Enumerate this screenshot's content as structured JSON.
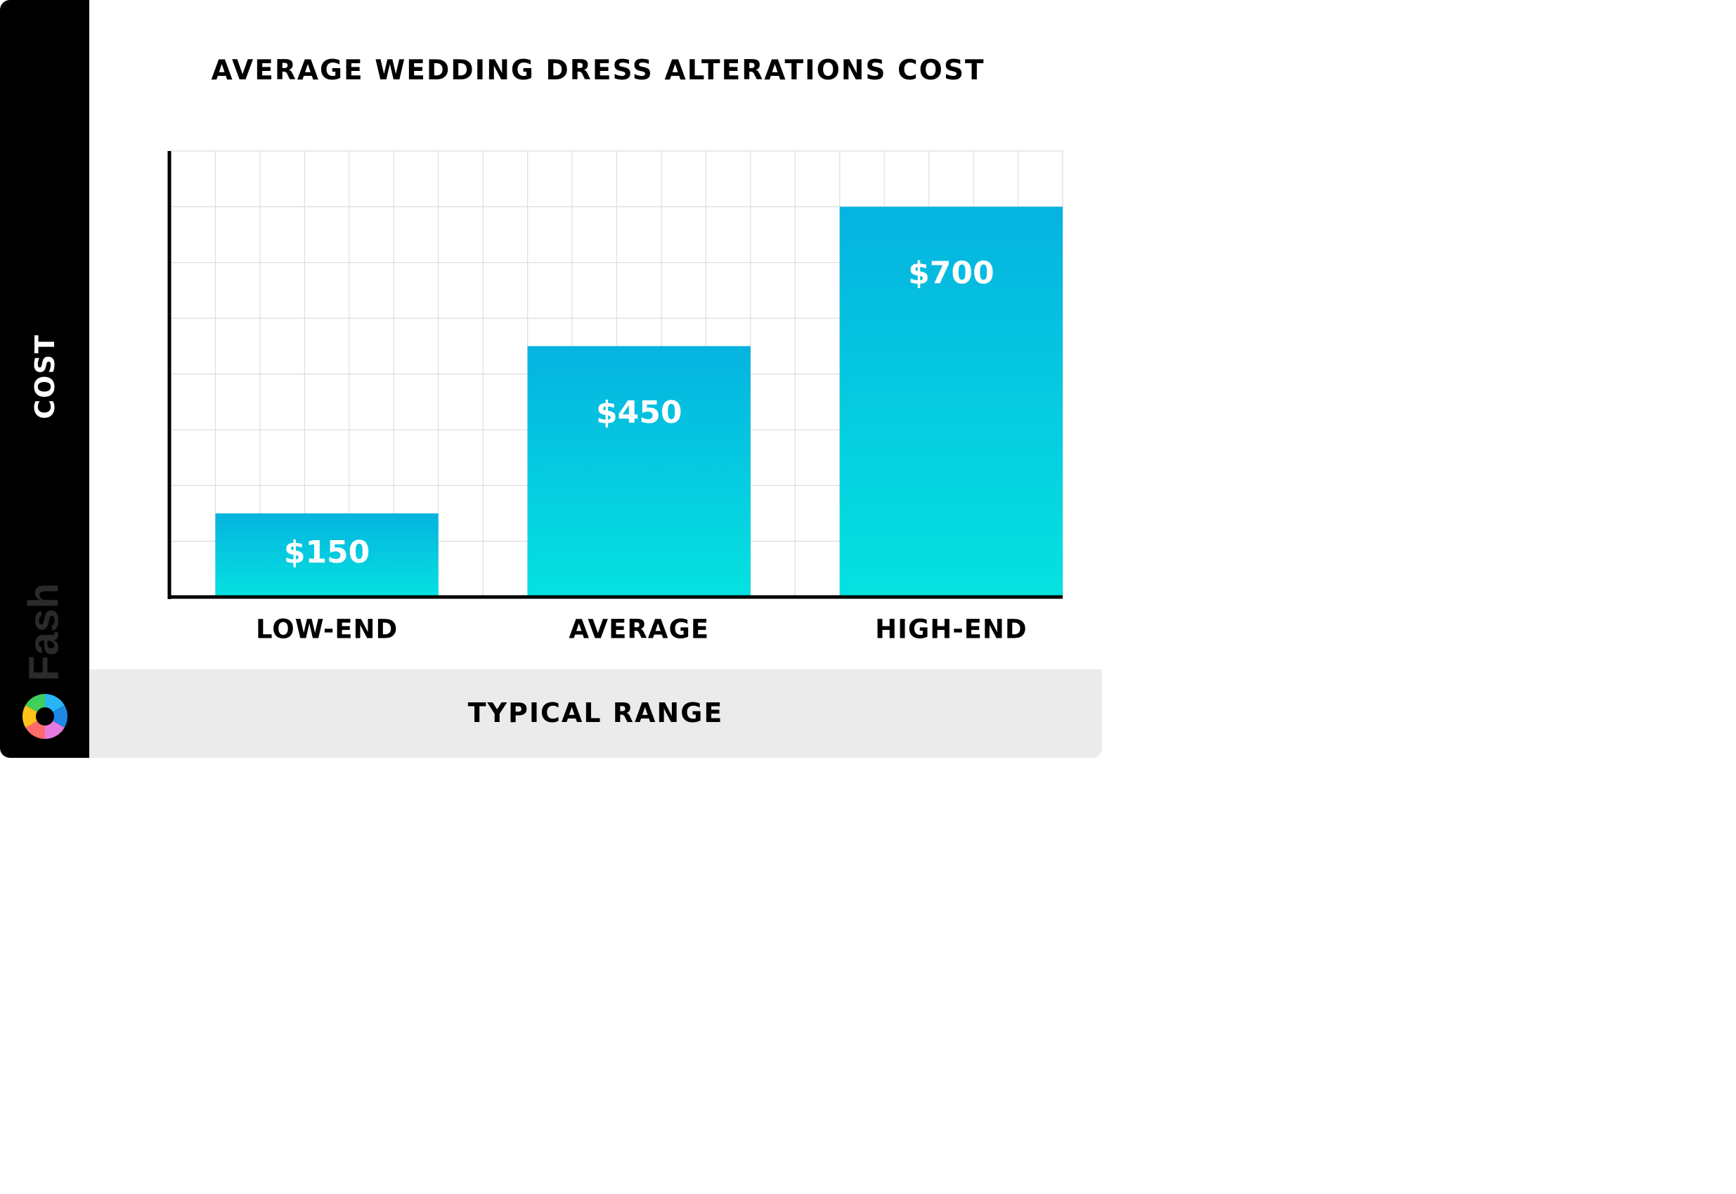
{
  "chart_data": {
    "type": "bar",
    "title": "AVERAGE WEDDING DRESS ALTERATIONS COST",
    "xlabel": "TYPICAL RANGE",
    "ylabel": "COST",
    "categories": [
      "LOW-END",
      "AVERAGE",
      "HIGH-END"
    ],
    "values": [
      150,
      450,
      700
    ],
    "value_labels": [
      "$150",
      "$450",
      "$700"
    ],
    "ylim": [
      0,
      800
    ],
    "grid": true,
    "colors": {
      "bar_top": "#05b3e0",
      "bar_bottom": "#05e2e0",
      "grid": "#dddddd",
      "axis": "#000000"
    }
  },
  "brand": {
    "name": "Fash",
    "logo": "aperture-logo-icon"
  }
}
